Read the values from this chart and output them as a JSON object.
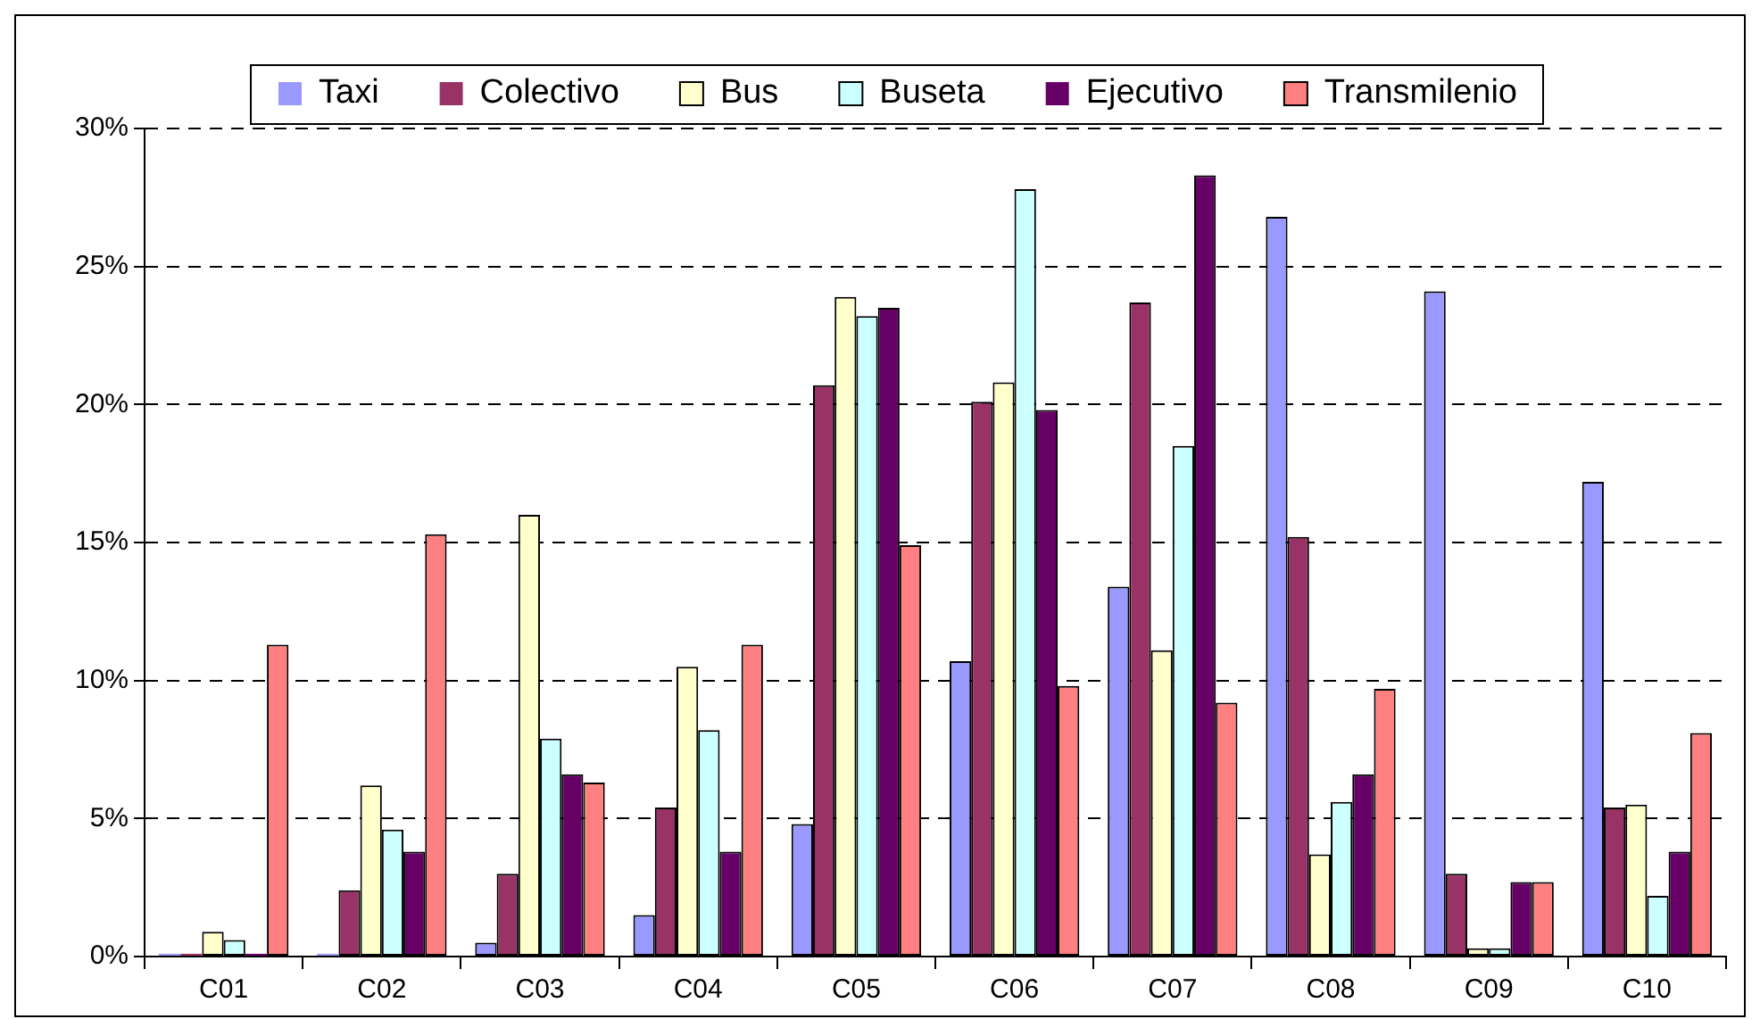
{
  "chart_data": {
    "type": "bar",
    "categories": [
      "C01",
      "C02",
      "C03",
      "C04",
      "C05",
      "C06",
      "C07",
      "C08",
      "C09",
      "C10"
    ],
    "series": [
      {
        "name": "Taxi",
        "color": "#9999ff",
        "values": [
          0.1,
          0.1,
          0.5,
          1.5,
          4.8,
          10.7,
          13.4,
          26.8,
          24.1,
          17.2
        ]
      },
      {
        "name": "Colectivo",
        "color": "#993366",
        "values": [
          0.1,
          2.4,
          3.0,
          5.4,
          20.7,
          20.1,
          23.7,
          15.2,
          3.0,
          5.4
        ]
      },
      {
        "name": "Bus",
        "color": "#ffffcc",
        "values": [
          0.9,
          6.2,
          16.0,
          10.5,
          23.9,
          20.8,
          11.1,
          3.7,
          0.3,
          5.5
        ]
      },
      {
        "name": "Buseta",
        "color": "#ccffff",
        "values": [
          0.6,
          4.6,
          7.9,
          8.2,
          23.2,
          27.8,
          18.5,
          5.6,
          0.3,
          2.2
        ]
      },
      {
        "name": "Ejecutivo",
        "color": "#660066",
        "values": [
          0.1,
          3.8,
          6.6,
          3.8,
          23.5,
          19.8,
          28.3,
          6.6,
          2.7,
          3.8
        ]
      },
      {
        "name": "Transmilenio",
        "color": "#ff8080",
        "values": [
          11.3,
          15.3,
          6.3,
          11.3,
          14.9,
          9.8,
          9.2,
          9.7,
          2.7,
          8.1
        ]
      }
    ],
    "ylim": [
      0,
      30
    ],
    "yticks": [
      {
        "value": 0,
        "label": "0%"
      },
      {
        "value": 5,
        "label": "5%"
      },
      {
        "value": 10,
        "label": "10%"
      },
      {
        "value": 15,
        "label": "15%"
      },
      {
        "value": 20,
        "label": "20%"
      },
      {
        "value": 25,
        "label": "25%"
      },
      {
        "value": 30,
        "label": "30%"
      }
    ],
    "grid": "y",
    "legend": "top"
  }
}
